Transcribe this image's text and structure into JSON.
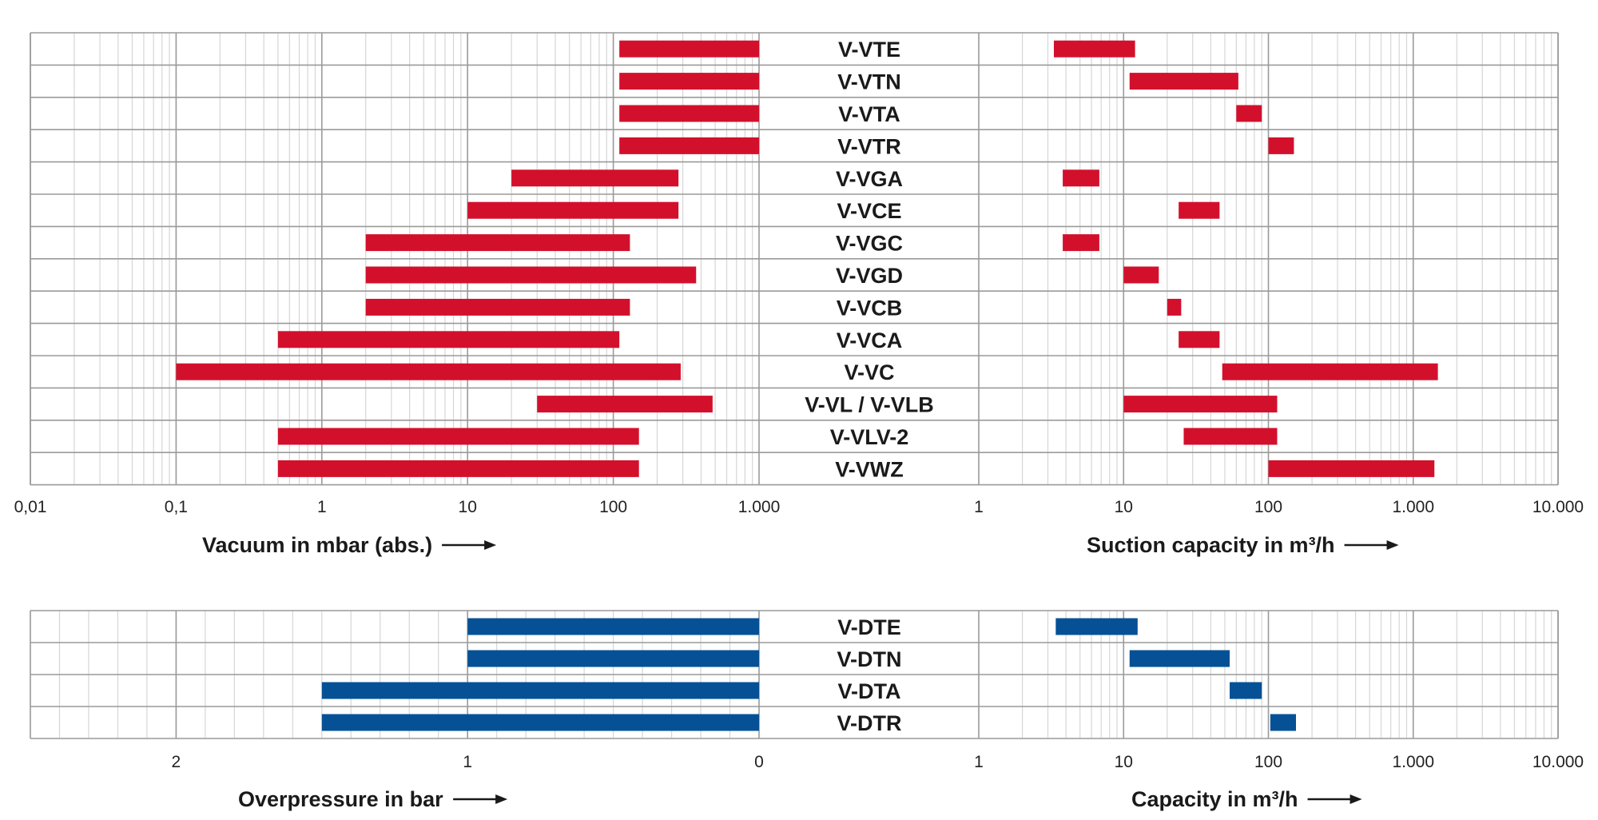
{
  "colors": {
    "vacuum_bar": "#d3102c",
    "pressure_bar": "#065196",
    "grid_minor": "#d6d6d6",
    "grid_major": "#9a9a9a",
    "frame": "#9a9a9a",
    "text": "#1a1a1a"
  },
  "chart_data": [
    {
      "type": "bar",
      "orientation": "horizontal-range",
      "xscale": "log",
      "xlim": [
        0.01,
        1000
      ],
      "xticks": [
        0.01,
        0.1,
        1,
        10,
        100,
        1000
      ],
      "xtick_labels": [
        "0,01",
        "0,1",
        "1",
        "10",
        "100",
        "1.000"
      ],
      "xlabel": "Vacuum in mbar (abs.)",
      "grid": true,
      "categories": [
        "V-VTE",
        "V-VTN",
        "V-VTA",
        "V-VTR",
        "V-VGA",
        "V-VCE",
        "V-VGC",
        "V-VGD",
        "V-VCB",
        "V-VCA",
        "V-VC",
        "V-VL / V-VLB",
        "V-VLV-2",
        "V-VWZ"
      ],
      "ranges": [
        [
          110,
          1000
        ],
        [
          110,
          1000
        ],
        [
          110,
          1000
        ],
        [
          110,
          1000
        ],
        [
          20,
          280
        ],
        [
          10,
          280
        ],
        [
          2,
          130
        ],
        [
          2,
          370
        ],
        [
          2,
          130
        ],
        [
          0.5,
          110
        ],
        [
          0.1,
          290
        ],
        [
          30,
          480
        ],
        [
          0.5,
          150
        ],
        [
          0.5,
          150
        ]
      ]
    },
    {
      "type": "bar",
      "orientation": "horizontal-range",
      "xscale": "log",
      "xlim": [
        1,
        10000
      ],
      "xticks": [
        1,
        10,
        100,
        1000,
        10000
      ],
      "xtick_labels": [
        "1",
        "10",
        "100",
        "1.000",
        "10.000"
      ],
      "xlabel": "Suction capacity in m³/h",
      "grid": true,
      "categories": [
        "V-VTE",
        "V-VTN",
        "V-VTA",
        "V-VTR",
        "V-VGA",
        "V-VCE",
        "V-VGC",
        "V-VGD",
        "V-VCB",
        "V-VCA",
        "V-VC",
        "V-VL / V-VLB",
        "V-VLV-2",
        "V-VWZ"
      ],
      "ranges": [
        [
          3.3,
          12
        ],
        [
          11,
          62
        ],
        [
          60,
          90
        ],
        [
          100,
          150
        ],
        [
          3.8,
          6.8
        ],
        [
          24,
          46
        ],
        [
          3.8,
          6.8
        ],
        [
          10,
          17.5
        ],
        [
          20,
          25
        ],
        [
          24,
          46
        ],
        [
          48,
          1480
        ],
        [
          10,
          115
        ],
        [
          26,
          115
        ],
        [
          100,
          1400
        ]
      ]
    },
    {
      "type": "bar",
      "orientation": "horizontal-range",
      "xscale": "linear",
      "xlim": [
        2.5,
        0
      ],
      "xticks": [
        2,
        1,
        0
      ],
      "xtick_labels": [
        "2",
        "1",
        "0"
      ],
      "xlabel": "Overpressure in bar",
      "grid": true,
      "categories": [
        "V-DTE",
        "V-DTN",
        "V-DTA",
        "V-DTR"
      ],
      "ranges": [
        [
          1,
          0
        ],
        [
          1,
          0
        ],
        [
          1.5,
          0
        ],
        [
          1.5,
          0
        ]
      ]
    },
    {
      "type": "bar",
      "orientation": "horizontal-range",
      "xscale": "log",
      "xlim": [
        1,
        10000
      ],
      "xticks": [
        1,
        10,
        100,
        1000,
        10000
      ],
      "xtick_labels": [
        "1",
        "10",
        "100",
        "1.000",
        "10.000"
      ],
      "xlabel": "Capacity in m³/h",
      "grid": true,
      "categories": [
        "V-DTE",
        "V-DTN",
        "V-DTA",
        "V-DTR"
      ],
      "ranges": [
        [
          3.4,
          12.5
        ],
        [
          11,
          54
        ],
        [
          54,
          90
        ],
        [
          103,
          155
        ]
      ]
    }
  ]
}
